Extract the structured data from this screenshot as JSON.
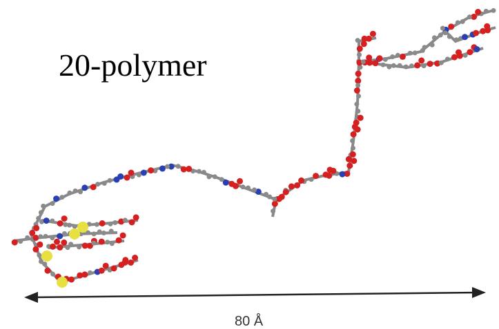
{
  "title": "20-polymer",
  "scale_label": "80 Å"
}
